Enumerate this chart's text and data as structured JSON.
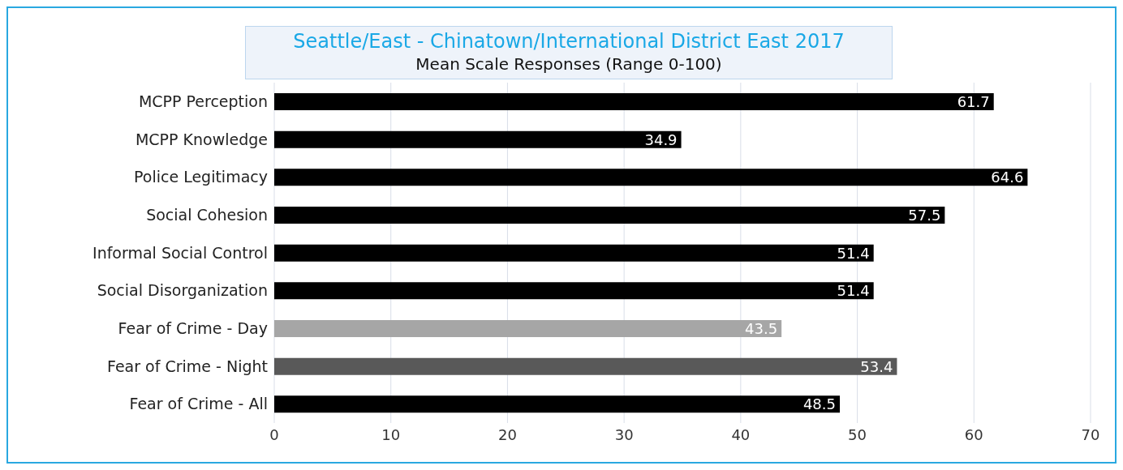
{
  "chart_data": {
    "type": "bar",
    "orientation": "horizontal",
    "title": "Seattle/East - Chinatown/International District East 2017",
    "subtitle": "Mean Scale Responses (Range 0-100)",
    "categories": [
      "MCPP Perception",
      "MCPP Knowledge",
      "Police Legitimacy",
      "Social Cohesion",
      "Informal Social Control",
      "Social Disorganization",
      "Fear of Crime - Day",
      "Fear of Crime - Night",
      "Fear of Crime - All"
    ],
    "values": [
      61.7,
      34.9,
      64.6,
      57.5,
      51.4,
      51.4,
      43.5,
      53.4,
      48.5
    ],
    "colors": [
      "#000000",
      "#000000",
      "#000000",
      "#000000",
      "#000000",
      "#000000",
      "#a6a6a6",
      "#595959",
      "#000000"
    ],
    "xlim": [
      0,
      70
    ],
    "xticks": [
      0,
      10,
      20,
      30,
      40,
      50,
      60,
      70
    ],
    "grid": "x",
    "data_labels": true
  }
}
